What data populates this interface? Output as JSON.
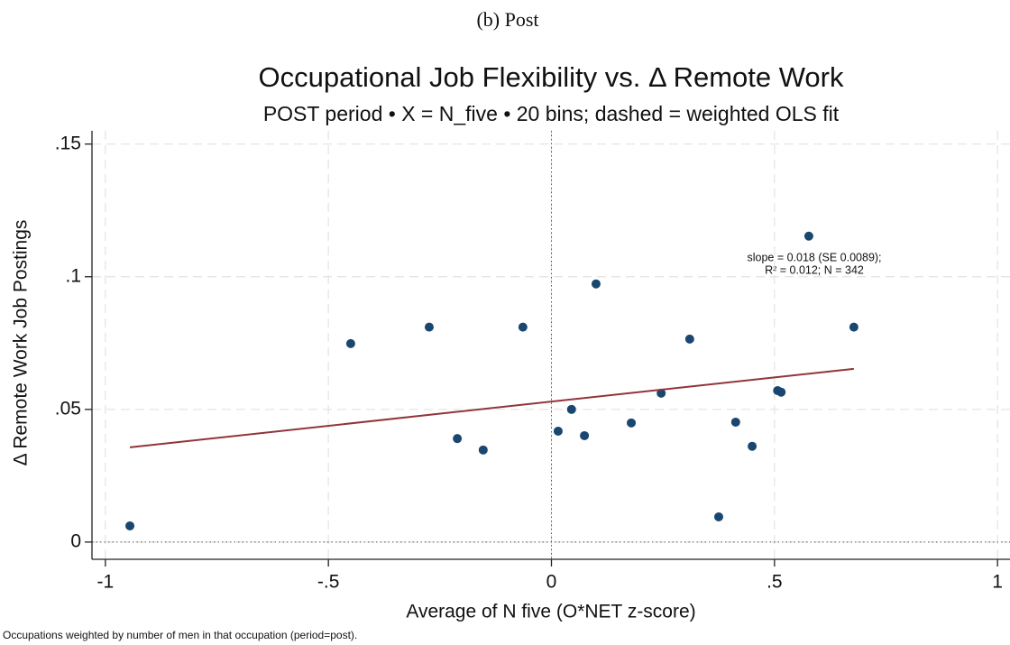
{
  "chart_data": {
    "type": "scatter",
    "caption": "(b) Post",
    "title": "Occupational Job Flexibility vs. Δ Remote Work",
    "subtitle": "POST period • X = N_five • 20 bins; dashed = weighted OLS fit",
    "x_label": "Average of N five (O*NET z-score)",
    "y_label": "Δ Remote Work Job Postings",
    "note": "Occupations weighted by number of men in that occupation (period=post).",
    "annotation": [
      "slope = 0.018  (SE 0.0089);",
      "R² = 0.012;  N = 342"
    ],
    "x": [
      -0.945,
      -0.45,
      -0.274,
      -0.211,
      -0.153,
      -0.064,
      0.015,
      0.045,
      0.074,
      0.1,
      0.179,
      0.246,
      0.31,
      0.375,
      0.413,
      0.45,
      0.507,
      0.515,
      0.577,
      0.678
    ],
    "values": [
      0.0061,
      0.0748,
      0.081,
      0.039,
      0.0347,
      0.081,
      0.0418,
      0.05,
      0.0401,
      0.0973,
      0.0449,
      0.0561,
      0.0765,
      0.0095,
      0.0452,
      0.0361,
      0.0571,
      0.0565,
      0.1153,
      0.081
    ],
    "color": "#1a476f",
    "fit": {
      "x": [
        -0.945,
        0.678
      ],
      "y": [
        0.0357,
        0.0653
      ],
      "color": "#90353b"
    },
    "xline": 0,
    "yline": 0,
    "xlim": [
      -1.03,
      1.028
    ],
    "ylim": [
      -0.0065,
      0.155
    ],
    "xticks": [
      -1,
      {
        "value": -0.5,
        "label": "-.5"
      },
      0,
      {
        "value": 0.5,
        "label": ".5"
      },
      1
    ],
    "yticks": [
      0,
      {
        "value": 0.05,
        "label": ".05"
      },
      {
        "value": 0.1,
        "label": ".1"
      },
      {
        "value": 0.15,
        "label": ".15"
      }
    ],
    "grid": true
  }
}
